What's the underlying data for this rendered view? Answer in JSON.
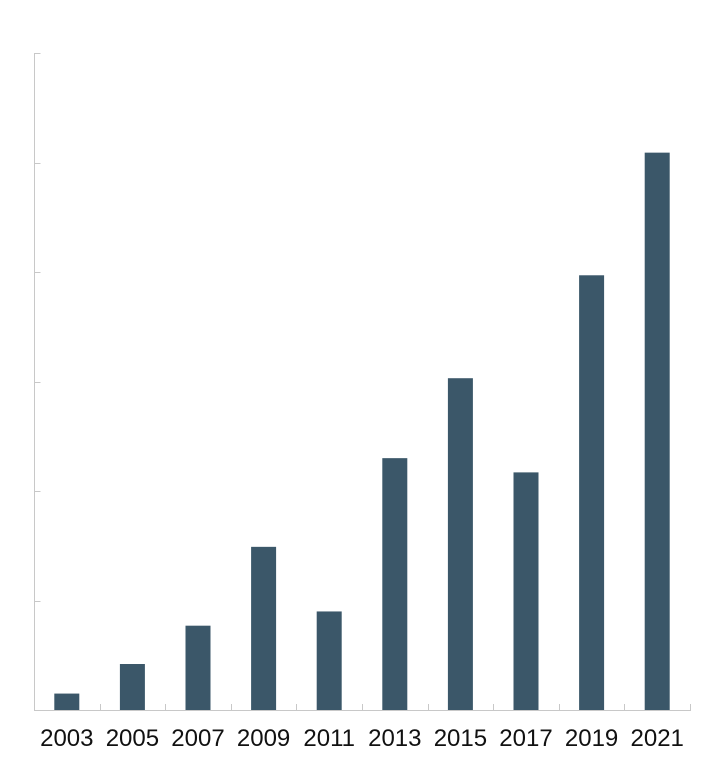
{
  "chart_data": {
    "type": "bar",
    "categories": [
      "2003",
      "2005",
      "2007",
      "2009",
      "2011",
      "2013",
      "2015",
      "2017",
      "2019",
      "2021"
    ],
    "values": [
      0.15,
      0.42,
      0.77,
      1.49,
      0.9,
      2.3,
      3.03,
      2.17,
      3.97,
      5.09
    ],
    "title": "",
    "xlabel": "",
    "ylabel": "",
    "ylim": [
      0,
      6
    ],
    "yticks": [
      0,
      1,
      2,
      3,
      4,
      5,
      6
    ],
    "ytick_labels_shown": false,
    "grid": false,
    "bar_color": "#3b5769",
    "axis_color": "#c8c8c8"
  }
}
